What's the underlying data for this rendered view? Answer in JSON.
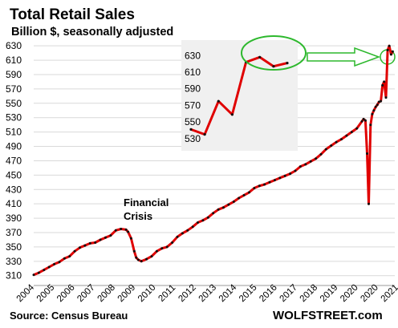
{
  "chart_data": {
    "type": "line",
    "title": "Total Retail Sales",
    "subtitle": "Billion $, seasonally adjusted",
    "xlabel": "",
    "ylabel": "",
    "y_ticks": [
      "310",
      "330",
      "350",
      "370",
      "390",
      "410",
      "430",
      "450",
      "470",
      "490",
      "510",
      "530",
      "550",
      "570",
      "590",
      "610",
      "630"
    ],
    "x_ticks": [
      "2004",
      "2005",
      "2006",
      "2007",
      "2008",
      "2009",
      "2010",
      "2011",
      "2012",
      "2013",
      "2014",
      "2015",
      "2016",
      "2017",
      "2018",
      "2019",
      "2020",
      "2020",
      "2021"
    ],
    "ylim": [
      303,
      638
    ],
    "grid": "horizontal",
    "series": [
      {
        "color": "#e00000",
        "marker_color": "#111111",
        "x": [
          2004.0,
          2004.25,
          2004.5,
          2004.75,
          2005.0,
          2005.25,
          2005.5,
          2005.75,
          2006.0,
          2006.25,
          2006.5,
          2006.75,
          2007.0,
          2007.25,
          2007.5,
          2007.75,
          2008.0,
          2008.25,
          2008.5,
          2008.6,
          2008.75,
          2008.9,
          2009.0,
          2009.1,
          2009.25,
          2009.5,
          2009.75,
          2010.0,
          2010.25,
          2010.5,
          2010.75,
          2011.0,
          2011.25,
          2011.5,
          2011.75,
          2012.0,
          2012.25,
          2012.5,
          2012.75,
          2013.0,
          2013.25,
          2013.5,
          2013.75,
          2014.0,
          2014.25,
          2014.5,
          2014.75,
          2015.0,
          2015.25,
          2015.5,
          2015.75,
          2016.0,
          2016.25,
          2016.5,
          2016.75,
          2017.0,
          2017.25,
          2017.5,
          2017.75,
          2018.0,
          2018.25,
          2018.5,
          2018.75,
          2019.0,
          2019.25,
          2019.5,
          2019.75,
          2020.0,
          2020.08,
          2020.17,
          2020.25,
          2020.33,
          2020.42,
          2020.5,
          2020.58,
          2020.67,
          2020.75,
          2020.83,
          2020.92,
          2021.0,
          2021.08,
          2021.17,
          2021.25,
          2021.33,
          2021.42,
          2021.5
        ],
        "y": [
          311,
          314,
          318,
          322,
          326,
          329,
          334,
          337,
          344,
          349,
          352,
          355,
          356,
          360,
          363,
          366,
          373,
          375,
          374,
          371,
          362,
          344,
          335,
          332,
          330,
          333,
          337,
          344,
          348,
          350,
          356,
          364,
          369,
          373,
          378,
          384,
          387,
          391,
          397,
          402,
          405,
          409,
          413,
          418,
          422,
          426,
          432,
          435,
          437,
          440,
          443,
          446,
          449,
          452,
          456,
          462,
          465,
          469,
          473,
          479,
          486,
          491,
          496,
          500,
          505,
          510,
          515,
          525,
          528,
          526,
          480,
          410,
          520,
          535,
          540,
          545,
          548,
          552,
          553,
          575,
          580,
          558,
          624,
          630,
          618,
          622
        ]
      }
    ],
    "inset": {
      "y_ticks": [
        "530",
        "550",
        "570",
        "590",
        "610",
        "630"
      ],
      "ylim": [
        525,
        637
      ],
      "values": [
        541,
        535,
        575,
        559,
        622,
        628,
        617,
        621
      ]
    },
    "annotations": [
      {
        "text": "Financial"
      },
      {
        "text": "Crisis"
      }
    ],
    "source": "Source: Census Bureau",
    "brand": "WOLFSTREET.com",
    "colors": {
      "line": "#e00000",
      "inset_bg": "#f0f0f0",
      "highlight": "#2db82d",
      "grid": "#d9d9d9"
    }
  }
}
